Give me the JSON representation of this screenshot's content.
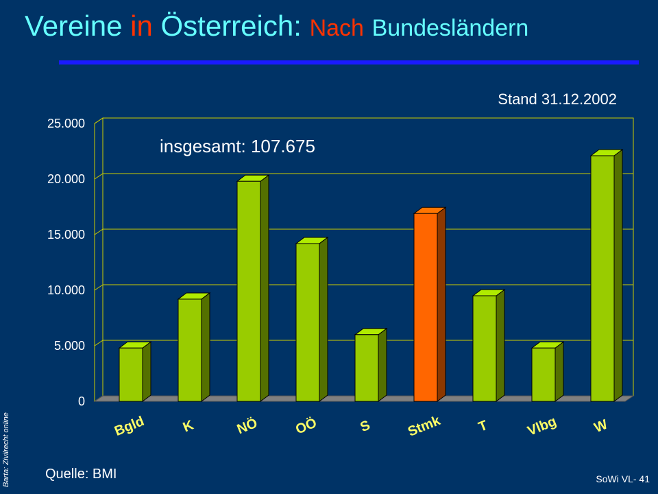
{
  "slide": {
    "title_part1": "Vereine",
    "title_part2": "in",
    "title_part3": "Österreich:",
    "title_part4": "Nach",
    "title_part5": "Bundesländern",
    "stand": "Stand 31.12.2002",
    "total": "insgesamt: 107.675",
    "source": "Quelle: BMI",
    "author": "Barta: Zivilrecht online",
    "slide_number": "SoWi VL- 41"
  },
  "colors": {
    "background": "#003366",
    "bar_default": "#99cc00",
    "bar_highlight": "#ff6600",
    "title": "#66ffff",
    "title_accent": "#ff3300",
    "category_labels": "#ffff66"
  },
  "chart_data": {
    "type": "bar",
    "categories": [
      "Bgld",
      "K",
      "NÖ",
      "OÖ",
      "S",
      "Stmk",
      "T",
      "Vlbg",
      "W"
    ],
    "values": [
      4800,
      9200,
      19800,
      14200,
      6000,
      16900,
      9500,
      4800,
      22100
    ],
    "highlight_category": "Stmk",
    "ylim": [
      0,
      25000
    ],
    "yticks": [
      0,
      5000,
      10000,
      15000,
      20000,
      25000
    ],
    "ytick_labels": [
      "0",
      "5.000",
      "10.000",
      "15.000",
      "20.000",
      "25.000"
    ],
    "grid": true,
    "three_d": true
  }
}
